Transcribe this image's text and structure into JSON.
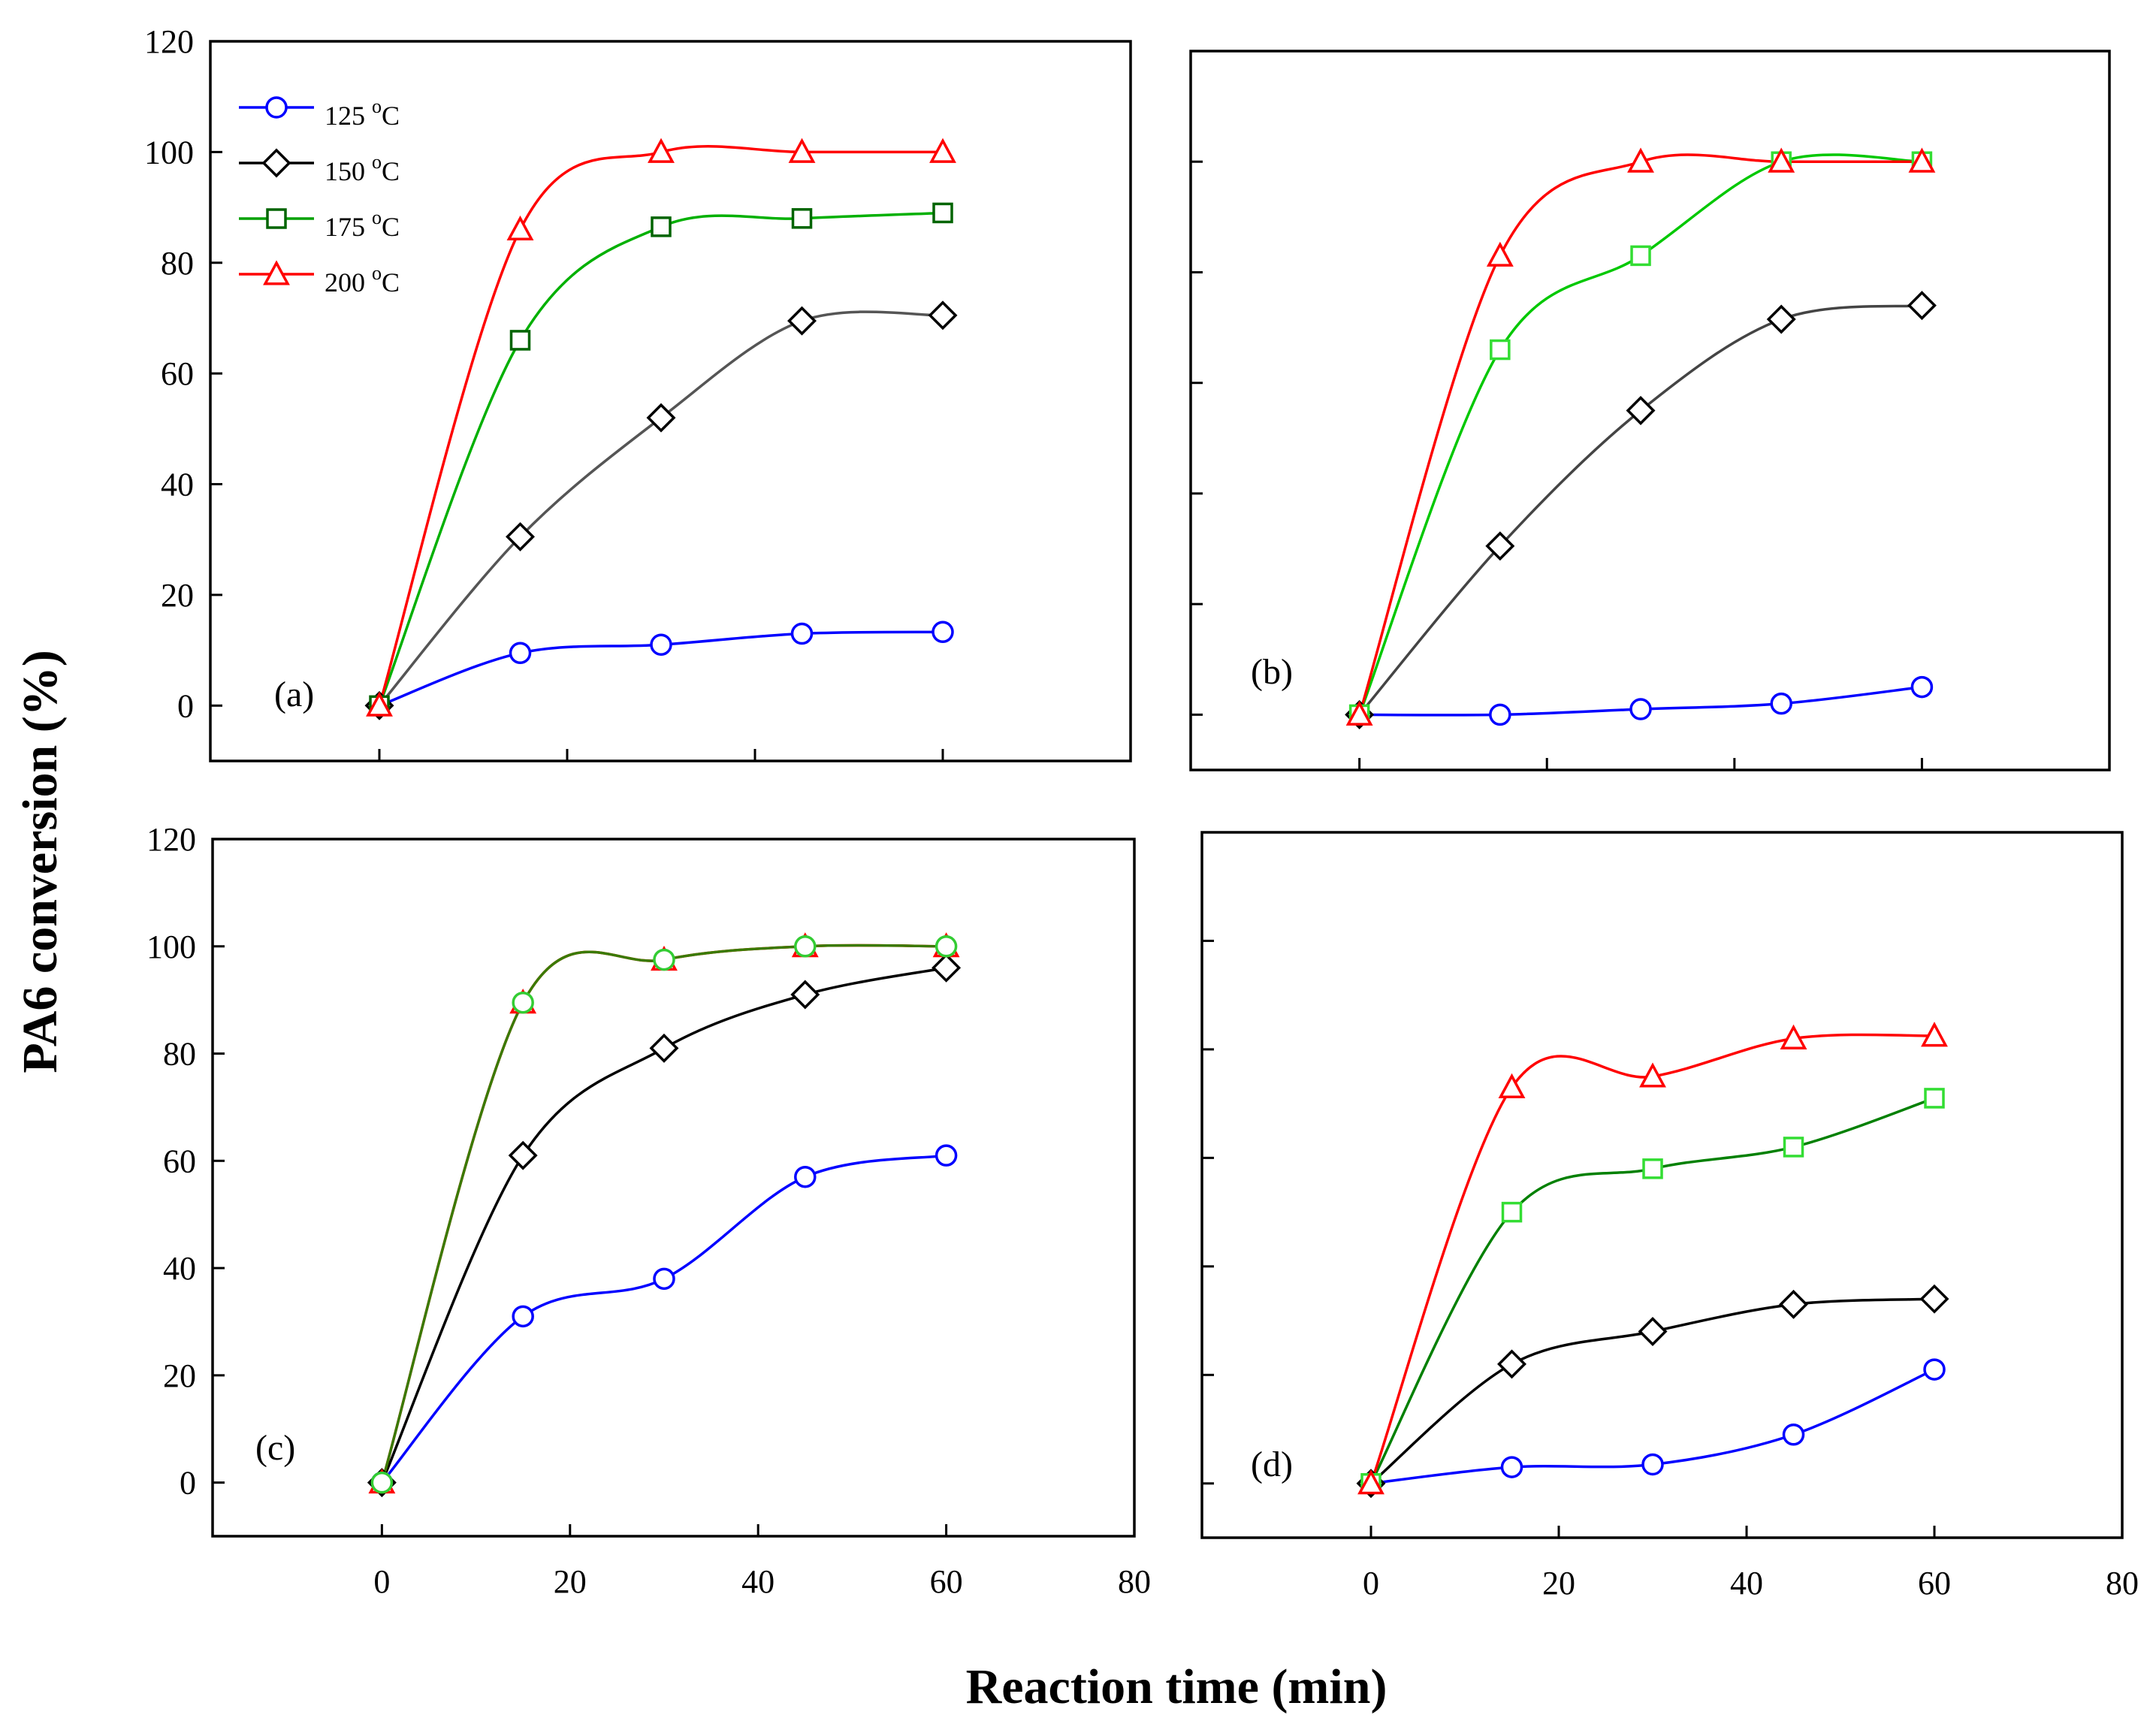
{
  "figure": {
    "ylabel": "PA6 conversion (%)",
    "xlabel": "Reaction time (min)"
  },
  "legend": [
    {
      "value": "125",
      "unit_sup": "o",
      "unit": "C",
      "color": "#0000ff",
      "marker": "circle"
    },
    {
      "value": "150",
      "unit_sup": "o",
      "unit": "C",
      "color": "#000000",
      "marker": "diamond"
    },
    {
      "value": "175",
      "unit_sup": "o",
      "unit": "C",
      "color": "#00a000",
      "marker": "square"
    },
    {
      "value": "200",
      "unit_sup": "o",
      "unit": "C",
      "color": "#ff0000",
      "marker": "triangle"
    }
  ],
  "chart_data": [
    {
      "type": "line",
      "panel_label": "(a)",
      "x": [
        0,
        15,
        30,
        45,
        60
      ],
      "xlim": [
        -18,
        80
      ],
      "ylim": [
        -10,
        120
      ],
      "xticks": [
        0,
        20,
        40,
        60,
        80
      ],
      "yticks": [
        0,
        20,
        40,
        60,
        80,
        100,
        120
      ],
      "show_xtick_labels": false,
      "show_ytick_labels": true,
      "series": [
        {
          "name": "125 oC",
          "color": "#0000ff",
          "line_color": "#0000ff",
          "marker": "circle",
          "values": [
            0,
            9.5,
            11,
            13,
            13.3
          ]
        },
        {
          "name": "150 oC",
          "color": "#000000",
          "line_color": "#555555",
          "marker": "diamond",
          "values": [
            0,
            30.5,
            52,
            69.5,
            70.5
          ]
        },
        {
          "name": "175 oC",
          "color": "#006400",
          "line_color": "#00b000",
          "marker": "square",
          "values": [
            0,
            66,
            86.5,
            88,
            89
          ]
        },
        {
          "name": "200 oC",
          "color": "#ff0000",
          "line_color": "#ff0000",
          "marker": "triangle",
          "values": [
            0,
            86,
            100,
            100,
            100
          ]
        }
      ]
    },
    {
      "type": "line",
      "panel_label": "(b)",
      "x": [
        0,
        15,
        30,
        45,
        60
      ],
      "xlim": [
        -18,
        80
      ],
      "ylim": [
        -10,
        120
      ],
      "xticks": [
        0,
        20,
        40,
        60,
        80
      ],
      "yticks": [
        0,
        20,
        40,
        60,
        80,
        100
      ],
      "show_xtick_labels": false,
      "show_ytick_labels": false,
      "series": [
        {
          "name": "125 oC",
          "color": "#0000ff",
          "line_color": "#0000ff",
          "marker": "circle",
          "values": [
            0,
            0,
            1,
            2,
            5
          ]
        },
        {
          "name": "150 oC",
          "color": "#000000",
          "line_color": "#444444",
          "marker": "diamond",
          "values": [
            0,
            30.5,
            55,
            71.5,
            74
          ]
        },
        {
          "name": "175 oC",
          "color": "#33dd33",
          "line_color": "#00c800",
          "marker": "square",
          "values": [
            0,
            66,
            83,
            100,
            100
          ]
        },
        {
          "name": "200 oC",
          "color": "#ff0000",
          "line_color": "#ff0000",
          "marker": "triangle",
          "values": [
            0,
            83,
            100,
            100,
            100
          ]
        }
      ]
    },
    {
      "type": "line",
      "panel_label": "(c)",
      "x": [
        0,
        15,
        30,
        45,
        60
      ],
      "xlim": [
        -18,
        80
      ],
      "ylim": [
        -10,
        120
      ],
      "xticks": [
        0,
        20,
        40,
        60,
        80
      ],
      "yticks": [
        0,
        20,
        40,
        60,
        80,
        100,
        120
      ],
      "show_xtick_labels": true,
      "show_ytick_labels": true,
      "series": [
        {
          "name": "125 oC",
          "color": "#0000ff",
          "line_color": "#0000ff",
          "marker": "circle",
          "values": [
            0,
            31,
            38,
            57,
            61
          ]
        },
        {
          "name": "150 oC",
          "color": "#000000",
          "line_color": "#000000",
          "marker": "diamond",
          "values": [
            0,
            61,
            81,
            91,
            96
          ]
        },
        {
          "name": "200 oC",
          "color": "#ff0000",
          "line_color": "#ff0000",
          "marker": "triangle",
          "values": [
            0,
            89.5,
            97.5,
            100,
            100
          ]
        },
        {
          "name": "175 oC",
          "color": "#33cc33",
          "line_color": "#3a7a00",
          "marker": "circle",
          "values": [
            0,
            89.5,
            97.5,
            100,
            100
          ]
        }
      ]
    },
    {
      "type": "line",
      "panel_label": "(d)",
      "x": [
        0,
        15,
        30,
        45,
        60
      ],
      "xlim": [
        -18,
        80
      ],
      "ylim": [
        -10,
        120
      ],
      "xticks": [
        0,
        20,
        40,
        60,
        80
      ],
      "yticks": [
        0,
        20,
        40,
        60,
        80,
        100
      ],
      "show_xtick_labels": true,
      "show_ytick_labels": false,
      "series": [
        {
          "name": "125 oC",
          "color": "#0000ff",
          "line_color": "#0000ff",
          "marker": "circle",
          "values": [
            0,
            3,
            3.5,
            9,
            21
          ]
        },
        {
          "name": "150 oC",
          "color": "#000000",
          "line_color": "#000000",
          "marker": "diamond",
          "values": [
            0,
            22,
            28,
            33,
            34
          ]
        },
        {
          "name": "175 oC",
          "color": "#33dd33",
          "line_color": "#008000",
          "marker": "square",
          "values": [
            0,
            50,
            58,
            62,
            71
          ]
        },
        {
          "name": "200 oC",
          "color": "#ff0000",
          "line_color": "#ff0000",
          "marker": "triangle",
          "values": [
            0,
            73,
            75,
            82,
            82.5
          ]
        }
      ]
    }
  ]
}
